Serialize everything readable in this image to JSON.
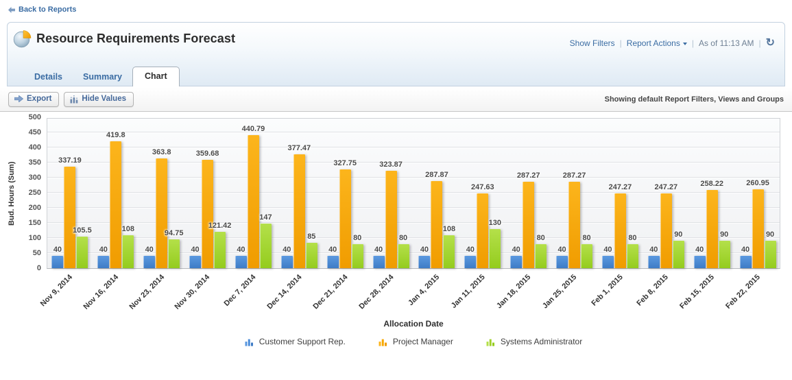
{
  "page": {
    "back_link": "Back to Reports",
    "title": "Resource Requirements Forecast",
    "header_actions": {
      "show_filters": "Show Filters",
      "report_actions": "Report Actions",
      "as_of": "As of 11:13 AM"
    },
    "tabs": [
      {
        "label": "Details",
        "active": false
      },
      {
        "label": "Summary",
        "active": false
      },
      {
        "label": "Chart",
        "active": true
      }
    ],
    "toolbar": {
      "export_label": "Export",
      "hide_values_label": "Hide Values",
      "status_text": "Showing default Report Filters, Views and Groups"
    }
  },
  "chart_data": {
    "type": "bar",
    "title": "",
    "xlabel": "Allocation Date",
    "ylabel": "Bud. Hours (Sum)",
    "ylim": [
      0,
      500
    ],
    "ytick_step": 50,
    "grid": true,
    "legend_position": "bottom",
    "value_labels_shown": true,
    "categories": [
      "Nov 9, 2014",
      "Nov 16, 2014",
      "Nov 23, 2014",
      "Nov 30, 2014",
      "Dec 7, 2014",
      "Dec 14, 2014",
      "Dec 21, 2014",
      "Dec 28, 2014",
      "Jan 4, 2015",
      "Jan 11, 2015",
      "Jan 18, 2015",
      "Jan 25, 2015",
      "Feb 1, 2015",
      "Feb 8, 2015",
      "Feb 15, 2015",
      "Feb 22, 2015"
    ],
    "series": [
      {
        "name": "Customer Support Rep.",
        "color": "#4a8cd9",
        "color_top": "#5b99e0",
        "color_bottom": "#3e7cc6",
        "values": [
          40,
          40,
          40,
          40,
          40,
          40,
          40,
          40,
          40,
          40,
          40,
          40,
          40,
          40,
          40,
          40
        ]
      },
      {
        "name": "Project Manager",
        "color": "#f7a800",
        "color_top": "#fcb51c",
        "color_bottom": "#f09c00",
        "values": [
          337.19,
          419.8,
          363.8,
          359.68,
          440.79,
          377.47,
          327.75,
          323.87,
          287.87,
          247.63,
          287.27,
          287.27,
          247.27,
          247.27,
          258.22,
          260.95
        ]
      },
      {
        "name": "Systems Administrator",
        "color": "#a0d02a",
        "color_top": "#b4e04a",
        "color_bottom": "#94cc1e",
        "values": [
          105.5,
          108,
          94.75,
          121.42,
          147,
          85,
          80,
          80,
          108,
          130,
          80,
          80,
          80,
          90,
          90,
          90
        ]
      }
    ]
  }
}
